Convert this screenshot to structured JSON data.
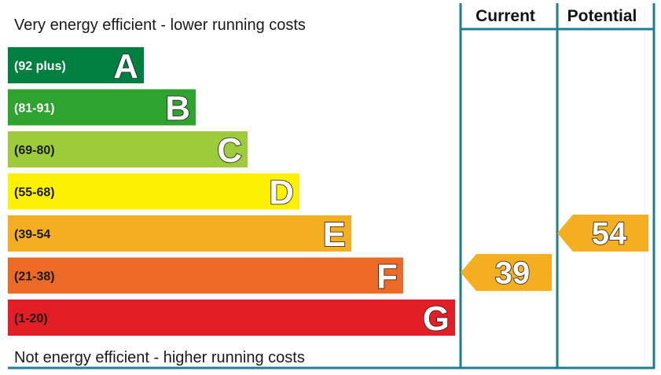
{
  "chart_data": {
    "type": "bar",
    "top_caption": "Very energy efficient - lower running costs",
    "bottom_caption": "Not energy efficient - higher running costs",
    "columns": {
      "current": "Current",
      "potential": "Potential"
    },
    "bands": [
      {
        "letter": "A",
        "range": "(92 plus)",
        "min": 92,
        "max": 100,
        "color": "#008040",
        "label_color": "#ffffff"
      },
      {
        "letter": "B",
        "range": "(81-91)",
        "min": 81,
        "max": 91,
        "color": "#2ea32e",
        "label_color": "#ffffff"
      },
      {
        "letter": "C",
        "range": "(69-80)",
        "min": 69,
        "max": 80,
        "color": "#9dcb3c",
        "label_color": "#1a1a1a"
      },
      {
        "letter": "D",
        "range": "(55-68)",
        "min": 55,
        "max": 68,
        "color": "#fff200",
        "label_color": "#1a1a1a"
      },
      {
        "letter": "E",
        "range": "(39-54",
        "min": 39,
        "max": 54,
        "color": "#f4ae20",
        "label_color": "#1a1a1a"
      },
      {
        "letter": "F",
        "range": "(21-38)",
        "min": 21,
        "max": 38,
        "color": "#ec6a25",
        "label_color": "#1a1a1a"
      },
      {
        "letter": "G",
        "range": "(1-20)",
        "min": 1,
        "max": 20,
        "color": "#e31e24",
        "label_color": "#1a1a1a"
      }
    ],
    "current_rating": {
      "value": 39,
      "label": "39",
      "band": "E",
      "color": "#f4ae20"
    },
    "potential_rating": {
      "value": 54,
      "label": "54",
      "band": "E",
      "color": "#f4ae20"
    }
  }
}
